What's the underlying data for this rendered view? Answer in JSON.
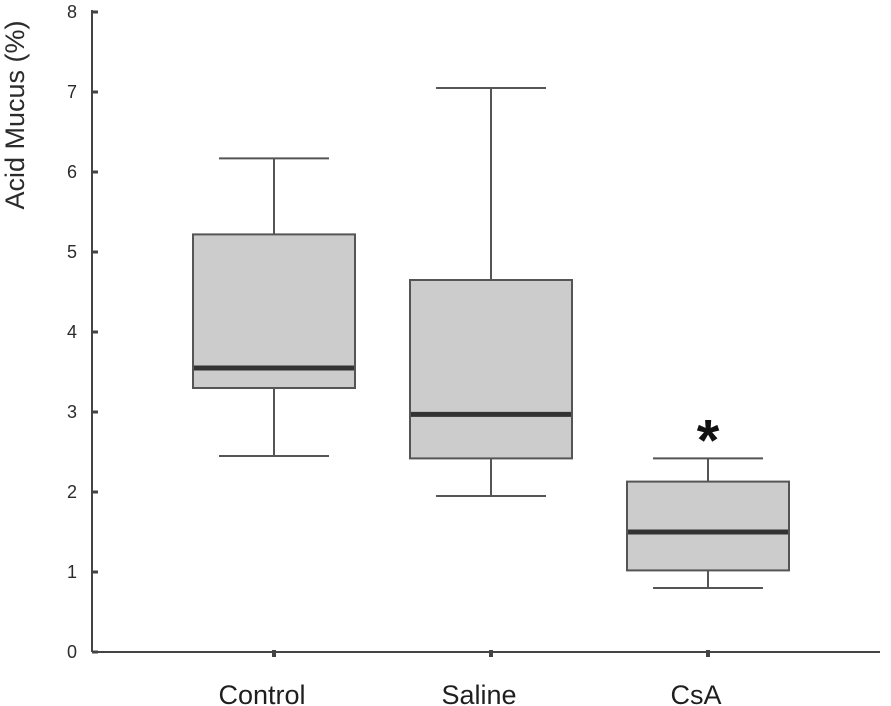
{
  "chart_data": {
    "type": "box",
    "title": "",
    "xlabel": "",
    "ylabel": "Acid Mucus (%)",
    "ylim": [
      0,
      8
    ],
    "yticks": [
      "0",
      "1",
      "2",
      "3",
      "4",
      "5",
      "6",
      "7",
      "8"
    ],
    "grid": false,
    "categories": [
      "Control",
      "Saline",
      "CsA"
    ],
    "boxes": [
      {
        "category": "Control",
        "min": 2.45,
        "q1": 3.3,
        "median": 3.55,
        "q3": 5.22,
        "max": 6.17,
        "annotation": ""
      },
      {
        "category": "Saline",
        "min": 1.95,
        "q1": 2.42,
        "median": 2.97,
        "q3": 4.65,
        "max": 7.05,
        "annotation": ""
      },
      {
        "category": "CsA",
        "min": 0.8,
        "q1": 1.02,
        "median": 1.5,
        "q3": 2.13,
        "max": 2.42,
        "annotation": "*"
      }
    ],
    "colors": {
      "box_fill": "#cccccc",
      "box_stroke": "#555555",
      "median": "#333333",
      "whisker": "#555555",
      "axis": "#444444"
    }
  }
}
